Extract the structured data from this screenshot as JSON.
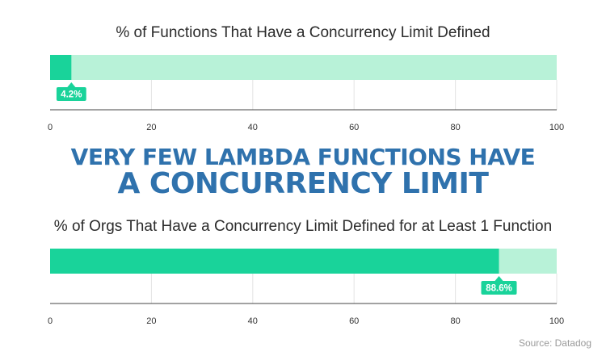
{
  "headline": {
    "line1": "VERY FEW LAMBDA FUNCTIONS HAVE",
    "line2": "A CONCURRENCY LIMIT"
  },
  "source": "Source: Datadog",
  "colors": {
    "value_bar": "#19d39a",
    "track": "#b8f2d8",
    "headline": "#2f72ad",
    "label_bg": "#19d39a",
    "label_text": "#ffffff",
    "grid": "#e3e3e3",
    "axis": "#444444"
  },
  "chart_data": [
    {
      "type": "bar",
      "orientation": "horizontal",
      "title": "% of Functions That Have a Concurrency Limit Defined",
      "values": [
        4.2
      ],
      "value_label": "4.2%",
      "xlim": [
        0,
        100
      ],
      "xticks": [
        0,
        20,
        40,
        60,
        80,
        100
      ],
      "grid": true
    },
    {
      "type": "bar",
      "orientation": "horizontal",
      "title": "% of Orgs That Have a Concurrency Limit Defined for at Least 1 Function",
      "values": [
        88.6
      ],
      "value_label": "88.6%",
      "xlim": [
        0,
        100
      ],
      "xticks": [
        0,
        20,
        40,
        60,
        80,
        100
      ],
      "grid": true
    }
  ]
}
